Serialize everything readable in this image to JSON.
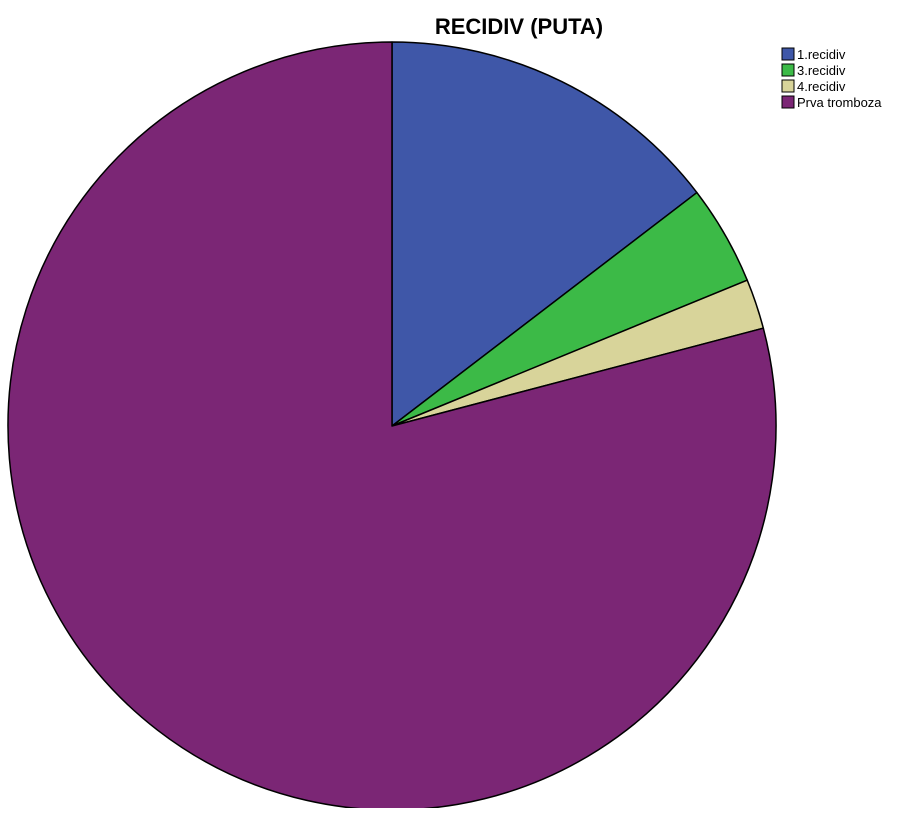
{
  "chart_data": {
    "type": "pie",
    "title": "RECIDIV (PUTA)",
    "categories": [
      "1.recidiv",
      "3.recidiv",
      "4.recidiv",
      "Prva tromboza"
    ],
    "values": [
      14.6,
      4.2,
      2.1,
      79.1
    ],
    "unit": "percent",
    "colors": [
      "#3f57a8",
      "#3cba47",
      "#d8d49a",
      "#7b2675"
    ],
    "start_angle": "12 o'clock",
    "direction": "clockwise",
    "legend": {
      "position": "top-right",
      "entries": [
        "1.recidiv",
        "3.recidiv",
        "4.recidiv",
        "Prva tromboza"
      ]
    }
  }
}
